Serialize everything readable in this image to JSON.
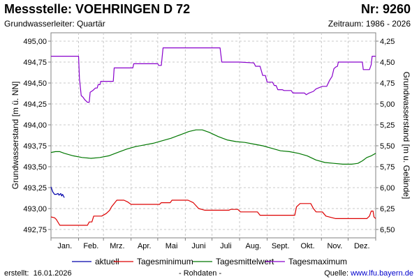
{
  "header": {
    "title": "Messstelle: VOEHRINGEN D 72",
    "number": "Nr: 9260",
    "subtitle": "Grundwasserleiter: Quartär",
    "period": "Zeitraum: 1986 - 2026"
  },
  "footer": {
    "created_label": "erstellt:",
    "created_date": "16.01.2026",
    "raw_note": "- Rohdaten -",
    "source_label": "Quelle:",
    "source_url": "www.lfu.bayern.de"
  },
  "chart_data": {
    "type": "line",
    "ylabel_left": "Grundwasserstand [m ü. NN]",
    "ylabel_right": "Grundwasserstand [m u. Gelände]",
    "ylim_left": [
      492.65,
      495.1
    ],
    "ylim_right": [
      6.6,
      4.15
    ],
    "yticks_left": [
      "495,00",
      "494,75",
      "494,50",
      "494,25",
      "494,00",
      "493,75",
      "493,50",
      "493,25",
      "493,00",
      "492,75"
    ],
    "yticks_left_values": [
      495.0,
      494.75,
      494.5,
      494.25,
      494.0,
      493.75,
      493.5,
      493.25,
      493.0,
      492.75
    ],
    "yticks_right": [
      "4,25",
      "4,50",
      "4,75",
      "5,00",
      "5,25",
      "5,50",
      "5,75",
      "6,00",
      "6,25",
      "6,50"
    ],
    "yticks_right_values": [
      4.25,
      4.5,
      4.75,
      5.0,
      5.25,
      5.5,
      5.75,
      6.0,
      6.25,
      6.5
    ],
    "xlim_days": [
      0,
      365
    ],
    "month_labels": [
      "Jan.",
      "Feb.",
      "Mrz.",
      "Apr.",
      "Mai",
      "Juni",
      "Juli",
      "Aug.",
      "Sept.",
      "Okt.",
      "Nov.",
      "Dez."
    ],
    "grid": true,
    "colors": {
      "aktuell": "#0000aa",
      "minimum": "#dd0000",
      "mean": "#007700",
      "maximum": "#8800cc",
      "grid": "#c8c8c8"
    },
    "legend_position": "bottom",
    "series": [
      {
        "name": "aktuell",
        "key": "aktuell",
        "points": [
          [
            0,
            493.26
          ],
          [
            2,
            493.2
          ],
          [
            4,
            493.17
          ],
          [
            6,
            493.17
          ],
          [
            8,
            493.18
          ],
          [
            9,
            493.16
          ],
          [
            11,
            493.18
          ],
          [
            12,
            493.15
          ],
          [
            13,
            493.17
          ],
          [
            15,
            493.13
          ]
        ]
      },
      {
        "name": "Tagesminimum",
        "key": "minimum",
        "points": [
          [
            0,
            492.9
          ],
          [
            4,
            492.89
          ],
          [
            6,
            492.87
          ],
          [
            10,
            492.8
          ],
          [
            20,
            492.8
          ],
          [
            30,
            492.8
          ],
          [
            41,
            492.8
          ],
          [
            43,
            492.84
          ],
          [
            46,
            492.84
          ],
          [
            48,
            492.91
          ],
          [
            57,
            492.91
          ],
          [
            62,
            492.94
          ],
          [
            66,
            492.98
          ],
          [
            68,
            493.02
          ],
          [
            74,
            493.1
          ],
          [
            82,
            493.1
          ],
          [
            86,
            493.08
          ],
          [
            90,
            493.05
          ],
          [
            113,
            493.05
          ],
          [
            122,
            493.05
          ],
          [
            124,
            493.07
          ],
          [
            134,
            493.07
          ],
          [
            136,
            493.1
          ],
          [
            154,
            493.1
          ],
          [
            160,
            493.07
          ],
          [
            166,
            493.0
          ],
          [
            173,
            492.98
          ],
          [
            200,
            492.98
          ],
          [
            202,
            492.99
          ],
          [
            210,
            492.99
          ],
          [
            213,
            492.96
          ],
          [
            232,
            492.96
          ],
          [
            235,
            492.92
          ],
          [
            262,
            492.92
          ],
          [
            274,
            492.92
          ],
          [
            276,
            493.02
          ],
          [
            280,
            493.06
          ],
          [
            292,
            493.06
          ],
          [
            295,
            493.0
          ],
          [
            298,
            492.96
          ],
          [
            305,
            492.96
          ],
          [
            309,
            492.91
          ],
          [
            320,
            492.88
          ],
          [
            355,
            492.88
          ],
          [
            358,
            492.91
          ],
          [
            360,
            492.97
          ],
          [
            362,
            492.97
          ],
          [
            363,
            492.9
          ],
          [
            365,
            492.88
          ]
        ]
      },
      {
        "name": "Tagesmittelwert",
        "key": "mean",
        "points": [
          [
            0,
            493.67
          ],
          [
            5,
            493.68
          ],
          [
            10,
            493.68
          ],
          [
            15,
            493.66
          ],
          [
            25,
            493.63
          ],
          [
            35,
            493.61
          ],
          [
            45,
            493.6
          ],
          [
            55,
            493.61
          ],
          [
            65,
            493.63
          ],
          [
            75,
            493.67
          ],
          [
            85,
            493.71
          ],
          [
            95,
            493.74
          ],
          [
            105,
            493.76
          ],
          [
            115,
            493.78
          ],
          [
            125,
            493.81
          ],
          [
            135,
            493.84
          ],
          [
            145,
            493.88
          ],
          [
            155,
            493.92
          ],
          [
            163,
            493.94
          ],
          [
            170,
            493.94
          ],
          [
            178,
            493.91
          ],
          [
            188,
            493.86
          ],
          [
            198,
            493.82
          ],
          [
            208,
            493.8
          ],
          [
            218,
            493.79
          ],
          [
            228,
            493.77
          ],
          [
            238,
            493.75
          ],
          [
            248,
            493.72
          ],
          [
            258,
            493.69
          ],
          [
            268,
            493.68
          ],
          [
            278,
            493.66
          ],
          [
            288,
            493.63
          ],
          [
            298,
            493.58
          ],
          [
            308,
            493.55
          ],
          [
            318,
            493.54
          ],
          [
            328,
            493.53
          ],
          [
            338,
            493.53
          ],
          [
            345,
            493.54
          ],
          [
            350,
            493.57
          ],
          [
            355,
            493.61
          ],
          [
            360,
            493.63
          ],
          [
            365,
            493.66
          ]
        ]
      },
      {
        "name": "Tagesmaximum",
        "key": "maximum",
        "points": [
          [
            0,
            494.82
          ],
          [
            15,
            494.82
          ],
          [
            30,
            494.82
          ],
          [
            31,
            494.82
          ],
          [
            32,
            494.55
          ],
          [
            34,
            494.35
          ],
          [
            36,
            494.33
          ],
          [
            38,
            494.3
          ],
          [
            40,
            494.28
          ],
          [
            41,
            494.27
          ],
          [
            43,
            494.27
          ],
          [
            44,
            494.39
          ],
          [
            47,
            494.41
          ],
          [
            50,
            494.44
          ],
          [
            52,
            494.44
          ],
          [
            53,
            494.48
          ],
          [
            55,
            494.48
          ],
          [
            56,
            494.52
          ],
          [
            70,
            494.52
          ],
          [
            71,
            494.68
          ],
          [
            92,
            494.68
          ],
          [
            93,
            494.73
          ],
          [
            120,
            494.73
          ],
          [
            121,
            494.71
          ],
          [
            124,
            494.71
          ],
          [
            126,
            494.92
          ],
          [
            190,
            494.92
          ],
          [
            192,
            494.75
          ],
          [
            210,
            494.75
          ],
          [
            212,
            494.75
          ],
          [
            228,
            494.74
          ],
          [
            230,
            494.7
          ],
          [
            235,
            494.7
          ],
          [
            238,
            494.59
          ],
          [
            241,
            494.59
          ],
          [
            243,
            494.51
          ],
          [
            249,
            494.51
          ],
          [
            251,
            494.47
          ],
          [
            253,
            494.47
          ],
          [
            255,
            494.42
          ],
          [
            260,
            494.42
          ],
          [
            262,
            494.41
          ],
          [
            270,
            494.41
          ],
          [
            272,
            494.38
          ],
          [
            285,
            494.38
          ],
          [
            287,
            494.36
          ],
          [
            290,
            494.38
          ],
          [
            295,
            494.4
          ],
          [
            298,
            494.43
          ],
          [
            305,
            494.46
          ],
          [
            310,
            494.46
          ],
          [
            313,
            494.53
          ],
          [
            316,
            494.58
          ],
          [
            318,
            494.67
          ],
          [
            320,
            494.69
          ],
          [
            322,
            494.7
          ],
          [
            323,
            494.75
          ],
          [
            350,
            494.75
          ],
          [
            351,
            494.66
          ],
          [
            358,
            494.66
          ],
          [
            360,
            494.72
          ],
          [
            361,
            494.82
          ],
          [
            365,
            494.82
          ]
        ]
      }
    ]
  }
}
